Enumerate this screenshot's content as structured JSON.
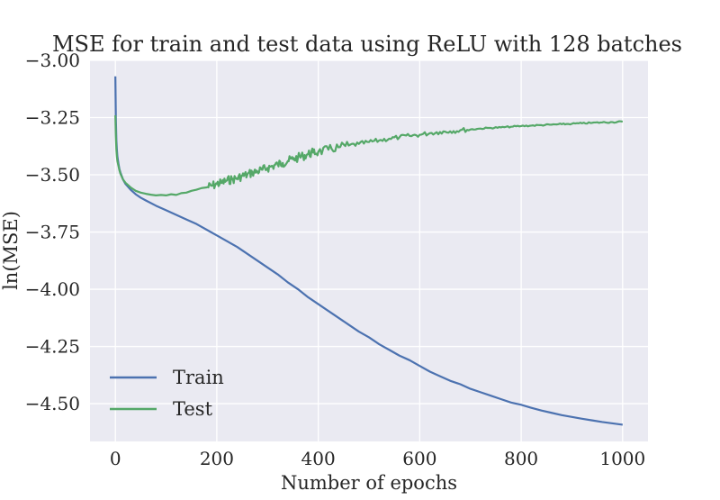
{
  "chart_data": {
    "type": "line",
    "title": "MSE for train and test data using ReLU with 128 batches",
    "xlabel": "Number of epochs",
    "ylabel": "ln(MSE)",
    "xlim": [
      -50,
      1050
    ],
    "ylim": [
      -4.665,
      -3.0
    ],
    "xticks": [
      0,
      200,
      400,
      600,
      800,
      1000
    ],
    "xtick_labels": [
      "0",
      "200",
      "400",
      "600",
      "800",
      "1000"
    ],
    "yticks": [
      -3.0,
      -3.25,
      -3.5,
      -3.75,
      -4.0,
      -4.25,
      -4.5
    ],
    "ytick_labels": [
      "−3.00",
      "−3.25",
      "−3.50",
      "−3.75",
      "−4.00",
      "−4.25",
      "−4.50"
    ],
    "grid": true,
    "legend_position": "lower-left",
    "background_color": "#eaeaf2",
    "grid_color": "#ffffff",
    "series": [
      {
        "name": "Train",
        "color": "#4c72b0",
        "x": [
          0,
          1,
          2,
          3,
          4,
          6,
          8,
          10,
          15,
          20,
          30,
          40,
          50,
          60,
          80,
          100,
          120,
          140,
          160,
          180,
          200,
          220,
          240,
          260,
          280,
          300,
          320,
          340,
          360,
          380,
          400,
          420,
          440,
          460,
          480,
          500,
          520,
          540,
          560,
          580,
          600,
          620,
          640,
          660,
          680,
          700,
          720,
          740,
          760,
          780,
          800,
          820,
          840,
          860,
          880,
          900,
          920,
          940,
          960,
          980,
          1000
        ],
        "y": [
          -3.07,
          -3.26,
          -3.35,
          -3.39,
          -3.42,
          -3.45,
          -3.475,
          -3.49,
          -3.52,
          -3.54,
          -3.565,
          -3.585,
          -3.6,
          -3.612,
          -3.635,
          -3.655,
          -3.675,
          -3.695,
          -3.715,
          -3.74,
          -3.765,
          -3.79,
          -3.815,
          -3.845,
          -3.875,
          -3.905,
          -3.935,
          -3.97,
          -4.0,
          -4.035,
          -4.065,
          -4.095,
          -4.125,
          -4.155,
          -4.185,
          -4.21,
          -4.24,
          -4.265,
          -4.29,
          -4.31,
          -4.335,
          -4.36,
          -4.38,
          -4.4,
          -4.415,
          -4.435,
          -4.45,
          -4.465,
          -4.48,
          -4.495,
          -4.505,
          -4.518,
          -4.53,
          -4.54,
          -4.55,
          -4.558,
          -4.566,
          -4.573,
          -4.58,
          -4.586,
          -4.592
        ]
      },
      {
        "name": "Test",
        "color": "#55a868",
        "x": [
          0,
          1,
          2,
          3,
          4,
          6,
          8,
          10,
          15,
          20,
          30,
          40,
          50,
          60,
          70,
          80,
          90,
          100,
          110,
          120,
          130,
          140,
          150,
          160,
          170,
          180,
          190,
          200,
          210,
          220,
          230,
          240,
          250,
          260,
          270,
          280,
          290,
          300,
          310,
          320,
          330,
          340,
          350,
          360,
          370,
          380,
          390,
          400,
          420,
          440,
          460,
          480,
          500,
          520,
          540,
          560,
          580,
          600,
          620,
          640,
          660,
          680,
          700,
          720,
          740,
          760,
          780,
          800,
          820,
          840,
          860,
          880,
          900,
          920,
          940,
          960,
          980,
          1000
        ],
        "y": [
          -3.24,
          -3.33,
          -3.39,
          -3.42,
          -3.44,
          -3.46,
          -3.48,
          -3.495,
          -3.52,
          -3.535,
          -3.555,
          -3.57,
          -3.578,
          -3.583,
          -3.587,
          -3.59,
          -3.588,
          -3.59,
          -3.585,
          -3.588,
          -3.58,
          -3.578,
          -3.57,
          -3.565,
          -3.558,
          -3.555,
          -3.548,
          -3.54,
          -3.535,
          -3.525,
          -3.52,
          -3.515,
          -3.505,
          -3.5,
          -3.49,
          -3.485,
          -3.478,
          -3.47,
          -3.462,
          -3.455,
          -3.448,
          -3.44,
          -3.432,
          -3.425,
          -3.418,
          -3.41,
          -3.403,
          -3.4,
          -3.39,
          -3.38,
          -3.372,
          -3.365,
          -3.357,
          -3.35,
          -3.342,
          -3.336,
          -3.33,
          -3.325,
          -3.318,
          -3.313,
          -3.31,
          -3.305,
          -3.302,
          -3.298,
          -3.295,
          -3.293,
          -3.29,
          -3.287,
          -3.285,
          -3.283,
          -3.281,
          -3.279,
          -3.277,
          -3.275,
          -3.273,
          -3.271,
          -3.27,
          -3.268
        ]
      }
    ]
  }
}
